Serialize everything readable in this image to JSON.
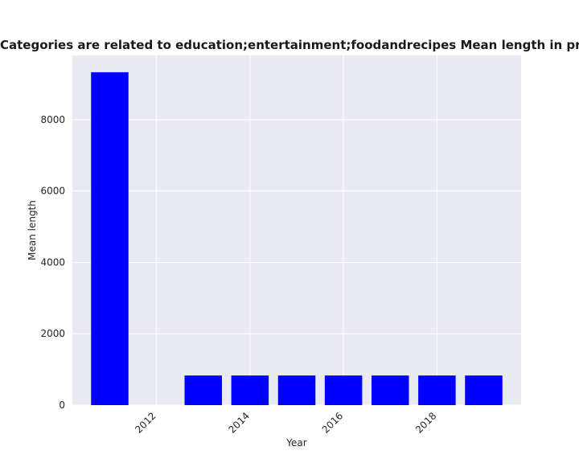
{
  "chart_data": {
    "type": "bar",
    "title": "Categories are related to education;entertainment;foodandrecipes Mean length in privacy policies",
    "xlabel": "Year",
    "ylabel": "Mean length",
    "x": [
      2011,
      2012,
      2013,
      2014,
      2015,
      2016,
      2017,
      2018,
      2019
    ],
    "values": [
      9330,
      0,
      830,
      830,
      830,
      830,
      830,
      830,
      830
    ],
    "xlim": [
      2010.2,
      2019.8
    ],
    "ylim": [
      0,
      9800
    ],
    "xticks": [
      2012,
      2014,
      2016,
      2018
    ],
    "xtick_labels": [
      "2012",
      "2014",
      "2016",
      "2018"
    ],
    "yticks": [
      0,
      2000,
      4000,
      6000,
      8000
    ],
    "ytick_labels": [
      "0",
      "2000",
      "4000",
      "6000",
      "8000"
    ],
    "bar_color": "#0000ff",
    "background_color": "#eaeaf2",
    "grid": true
  }
}
